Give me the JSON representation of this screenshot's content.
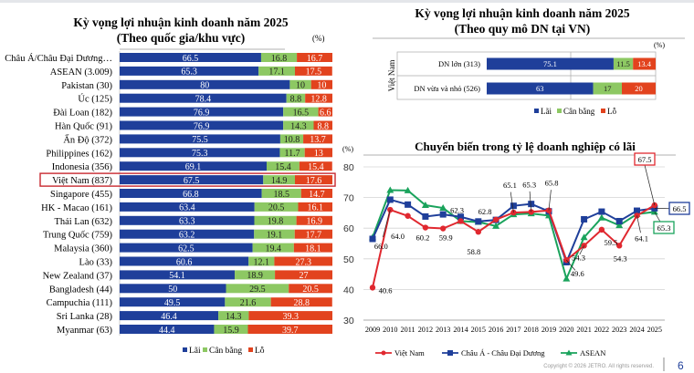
{
  "colors": {
    "lai": "#1f3f9a",
    "can_bang": "#8dc863",
    "lo": "#e2431e",
    "vietnam": "#e0282f",
    "asia": "#1f3f9a",
    "asean": "#1aa35c",
    "highlight": "#c8282f"
  },
  "legend": {
    "lai": "Lãi",
    "can_bang": "Cân bằng",
    "lo": "Lỗ"
  },
  "copyright": "Copyright © 2026 JETRO. All rights reserved.",
  "page_number": "6",
  "chart_data": [
    {
      "type": "bar",
      "stacked": true,
      "orientation": "horizontal",
      "title": "Kỳ vọng lợi nhuận kinh doanh năm 2025",
      "subtitle": "(Theo quốc gia/khu vực)",
      "unit": "(%)",
      "highlight": "Việt Nam (837)",
      "categories": [
        "Châu Á/Châu Đại Dương…",
        "ASEAN (3.009)",
        "Pakistan (30)",
        "Úc (125)",
        "Đài Loan (182)",
        "Hàn Quốc (91)",
        "Ấn Độ (372)",
        "Philippines (162)",
        "Indonesia (356)",
        "Việt Nam (837)",
        "Singapore (455)",
        "HK - Macao (161)",
        "Thái Lan (632)",
        "Trung Quốc (759)",
        "Malaysia (360)",
        "Lào (33)",
        "New Zealand (37)",
        "Bangladesh (44)",
        "Campuchia (111)",
        "Sri Lanka (28)",
        "Myanmar (63)"
      ],
      "series": [
        {
          "name": "Lãi",
          "values": [
            66.5,
            65.3,
            80.0,
            78.4,
            76.9,
            76.9,
            75.5,
            75.3,
            69.1,
            67.5,
            66.8,
            63.4,
            63.3,
            63.2,
            62.5,
            60.6,
            54.1,
            50.0,
            49.5,
            46.4,
            44.4
          ]
        },
        {
          "name": "Cân bằng",
          "values": [
            16.8,
            17.1,
            10.0,
            8.8,
            16.5,
            14.3,
            10.8,
            11.7,
            15.4,
            14.9,
            18.5,
            20.5,
            19.8,
            19.1,
            19.4,
            12.1,
            18.9,
            29.5,
            21.6,
            14.3,
            15.9
          ]
        },
        {
          "name": "Lỗ",
          "values": [
            16.7,
            17.5,
            10.0,
            12.8,
            6.6,
            8.8,
            13.7,
            13.0,
            15.4,
            17.6,
            14.7,
            16.1,
            16.9,
            17.7,
            18.1,
            27.3,
            27.0,
            20.5,
            28.8,
            39.3,
            39.7
          ]
        }
      ]
    },
    {
      "type": "bar",
      "stacked": true,
      "orientation": "horizontal",
      "title": "Kỳ vọng lợi nhuận kinh doanh năm 2025",
      "subtitle": "(Theo quy mô DN tại VN)",
      "unit": "(%)",
      "group_label": "Việt Nam",
      "categories": [
        "DN lớn (313)",
        "DN vừa và nhỏ (526)"
      ],
      "series": [
        {
          "name": "Lãi",
          "values": [
            75.1,
            63.0
          ]
        },
        {
          "name": "Cân bằng",
          "values": [
            11.5,
            17.0
          ]
        },
        {
          "name": "Lỗ",
          "values": [
            13.4,
            20.0
          ]
        }
      ]
    },
    {
      "type": "line",
      "title": "Chuyển biến trong tỷ lệ doanh nghiệp có lãi",
      "ylabel": "(%)",
      "ylim": [
        30,
        80
      ],
      "yticks": [
        "30",
        "40",
        "50",
        "60",
        "70",
        "80"
      ],
      "grid": true,
      "legend": "bottom",
      "x": [
        "2009",
        "2010",
        "2011",
        "2012",
        "2013",
        "2014",
        "2015",
        "2016",
        "2017",
        "2018",
        "2019",
        "2020",
        "2021",
        "2022",
        "2023",
        "2024",
        "2025"
      ],
      "series": [
        {
          "name": "Việt Nam",
          "values": [
            40.6,
            66.0,
            64.0,
            60.2,
            59.9,
            62.3,
            58.8,
            62.8,
            65.1,
            65.3,
            65.8,
            49.6,
            54.3,
            59.5,
            54.3,
            64.1,
            67.5
          ],
          "labels": [
            "40.6",
            "66.0",
            "64.0",
            "60.2",
            "59.9",
            "62.3",
            "58.8",
            "62.8",
            "65.1",
            "65.3",
            "65.8",
            "49.6",
            "54.3",
            "59.5",
            "54.3",
            "64.1",
            "67.5"
          ]
        },
        {
          "name": "Châu Á - Châu Đại Dương",
          "values": [
            56.5,
            69.3,
            67.7,
            63.8,
            64.5,
            63.7,
            62.2,
            62.7,
            67.3,
            67.9,
            65.5,
            48.9,
            62.9,
            65.4,
            62.3,
            65.7,
            66.5
          ],
          "end_label": "66.5"
        },
        {
          "name": "ASEAN",
          "values": [
            57.0,
            72.4,
            72.3,
            67.5,
            66.6,
            62.3,
            62.0,
            60.7,
            64.5,
            64.8,
            64.1,
            43.5,
            57.0,
            63.4,
            60.9,
            64.6,
            65.3
          ],
          "end_label": "65.3"
        }
      ]
    }
  ]
}
